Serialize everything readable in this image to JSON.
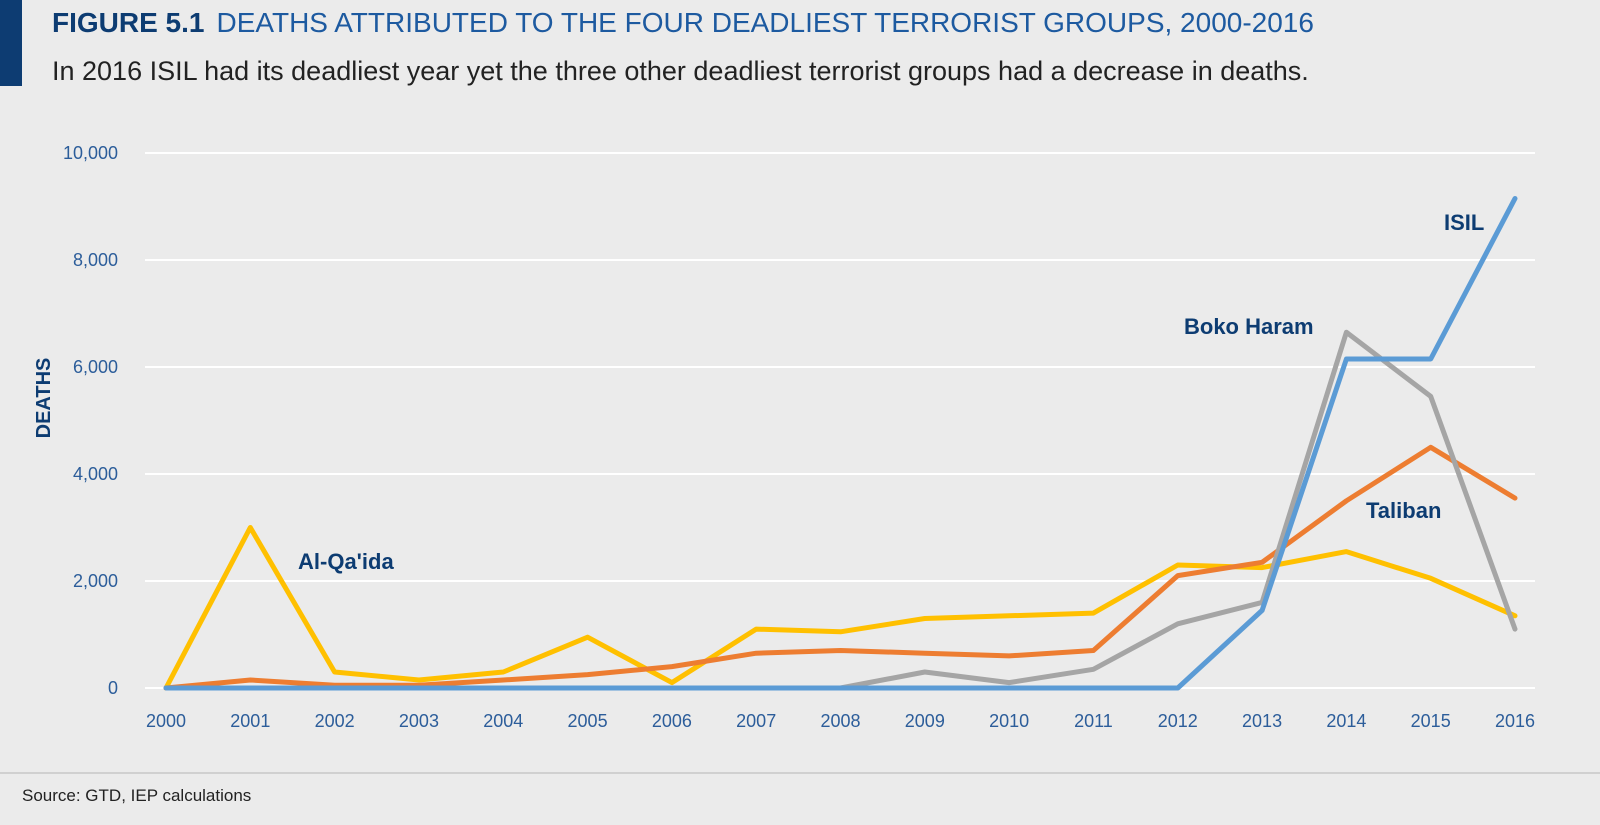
{
  "header": {
    "figure_number": "FIGURE 5.1",
    "figure_title": "DEATHS ATTRIBUTED TO THE FOUR DEADLIEST TERRORIST GROUPS, 2000-2016",
    "subtitle": "In 2016 ISIL had its deadliest year yet the three other deadliest terrorist groups had a decrease in deaths."
  },
  "footer": {
    "source": "Source: GTD, IEP calculations"
  },
  "colors": {
    "accent": "#0d3c72",
    "isil": "#5b9bd5",
    "boko_haram": "#a5a5a5",
    "taliban": "#ed7d31",
    "al_qaida": "#ffc000"
  },
  "chart_data": {
    "type": "line",
    "title": "DEATHS ATTRIBUTED TO THE FOUR DEADLIEST TERRORIST GROUPS, 2000-2016",
    "xlabel": "",
    "ylabel": "DEATHS",
    "ylim": [
      0,
      10000
    ],
    "yticks": [
      0,
      2000,
      4000,
      6000,
      8000,
      10000
    ],
    "ytick_labels": [
      "0",
      "2,000",
      "4,000",
      "6,000",
      "8,000",
      "10,000"
    ],
    "grid": true,
    "legend": "inline labels",
    "categories": [
      "2000",
      "2001",
      "2002",
      "2003",
      "2004",
      "2005",
      "2006",
      "2007",
      "2008",
      "2009",
      "2010",
      "2011",
      "2012",
      "2013",
      "2014",
      "2015",
      "2016"
    ],
    "series": [
      {
        "name": "Al-Qa'ida",
        "color": "#ffc000",
        "values": [
          0,
          3000,
          300,
          150,
          300,
          950,
          100,
          1100,
          1050,
          1300,
          1350,
          1400,
          2300,
          2250,
          2550,
          2050,
          1350
        ]
      },
      {
        "name": "Taliban",
        "color": "#ed7d31",
        "values": [
          0,
          150,
          50,
          50,
          150,
          250,
          400,
          650,
          700,
          650,
          600,
          700,
          2100,
          2350,
          3500,
          4500,
          3550
        ]
      },
      {
        "name": "Boko Haram",
        "color": "#a5a5a5",
        "values": [
          0,
          0,
          0,
          0,
          0,
          0,
          0,
          0,
          0,
          300,
          100,
          350,
          1200,
          1600,
          6650,
          5450,
          1100
        ]
      },
      {
        "name": "ISIL",
        "color": "#5b9bd5",
        "values": [
          0,
          0,
          0,
          0,
          0,
          0,
          0,
          0,
          0,
          0,
          0,
          0,
          0,
          1450,
          6150,
          6150,
          9150
        ]
      }
    ]
  }
}
